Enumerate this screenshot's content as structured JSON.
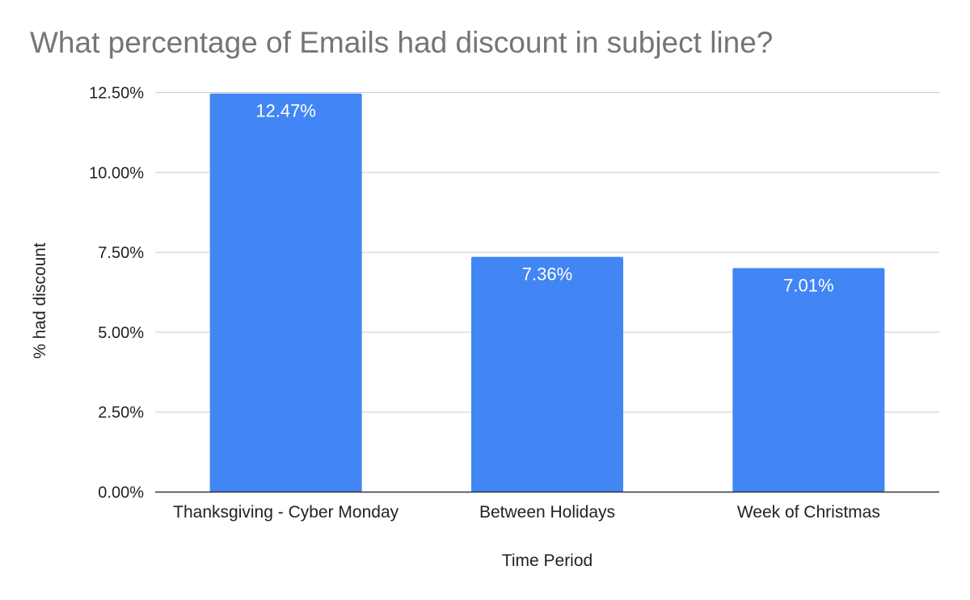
{
  "chart_data": {
    "type": "bar",
    "title": "What percentage of Emails had discount in subject line?",
    "xlabel": "Time Period",
    "ylabel": "% had discount",
    "categories": [
      "Thanksgiving - Cyber Monday",
      "Between Holidays",
      "Week of Christmas"
    ],
    "values": [
      12.47,
      7.36,
      7.01
    ],
    "data_labels": [
      "12.47%",
      "7.36%",
      "7.01%"
    ],
    "yticks": [
      0,
      2.5,
      5,
      7.5,
      10,
      12.5
    ],
    "ytick_labels": [
      "0.00%",
      "2.50%",
      "5.00%",
      "7.50%",
      "10.00%",
      "12.50%"
    ],
    "ylim": [
      0,
      12.5
    ],
    "grid": true,
    "legend": "none",
    "bar_color": "#4285F4",
    "gridline_color": "#cccccc"
  }
}
